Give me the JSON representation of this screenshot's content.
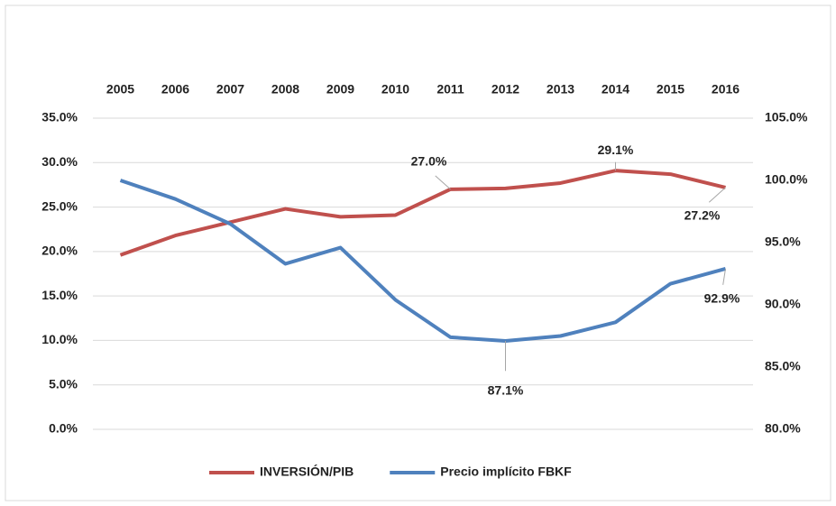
{
  "chart_data": {
    "type": "line",
    "categories": [
      "2005",
      "2006",
      "2007",
      "2008",
      "2009",
      "2010",
      "2011",
      "2012",
      "2013",
      "2014",
      "2015",
      "2016"
    ],
    "series": [
      {
        "name": "INVERSIÓN/PIB",
        "color": "#c0504d",
        "axis": "y",
        "values": [
          19.6,
          21.8,
          23.3,
          24.8,
          23.9,
          24.1,
          27.0,
          27.1,
          27.7,
          29.1,
          28.7,
          27.2
        ],
        "value_labels": [
          null,
          null,
          null,
          null,
          null,
          null,
          "27.0%",
          null,
          null,
          "29.1%",
          null,
          "27.2%"
        ]
      },
      {
        "name": "Precio implícito FBKF",
        "color": "#4f81bd",
        "axis": "y2",
        "values": [
          100.0,
          98.5,
          96.5,
          93.3,
          94.6,
          90.4,
          87.4,
          87.1,
          87.5,
          88.6,
          91.7,
          92.9
        ],
        "value_labels": [
          null,
          null,
          null,
          null,
          null,
          null,
          null,
          "87.1%",
          null,
          null,
          null,
          "92.9%"
        ]
      }
    ],
    "ylim": [
      0,
      35
    ],
    "yticks": [
      {
        "value": 0,
        "label": "0.0%"
      },
      {
        "value": 5,
        "label": "5.0%"
      },
      {
        "value": 10,
        "label": "10.0%"
      },
      {
        "value": 15,
        "label": "15.0%"
      },
      {
        "value": 20,
        "label": "20.0%"
      },
      {
        "value": 25,
        "label": "25.0%"
      },
      {
        "value": 30,
        "label": "30.0%"
      },
      {
        "value": 35,
        "label": "35.0%"
      }
    ],
    "y2lim": [
      80,
      105
    ],
    "y2ticks": [
      {
        "value": 80,
        "label": "80.0%"
      },
      {
        "value": 85,
        "label": "85.0%"
      },
      {
        "value": 90,
        "label": "90.0%"
      },
      {
        "value": 95,
        "label": "95.0%"
      },
      {
        "value": 100,
        "label": "100.0%"
      },
      {
        "value": 105,
        "label": "105.0%"
      }
    ],
    "grid": true,
    "legend": "bottom"
  }
}
